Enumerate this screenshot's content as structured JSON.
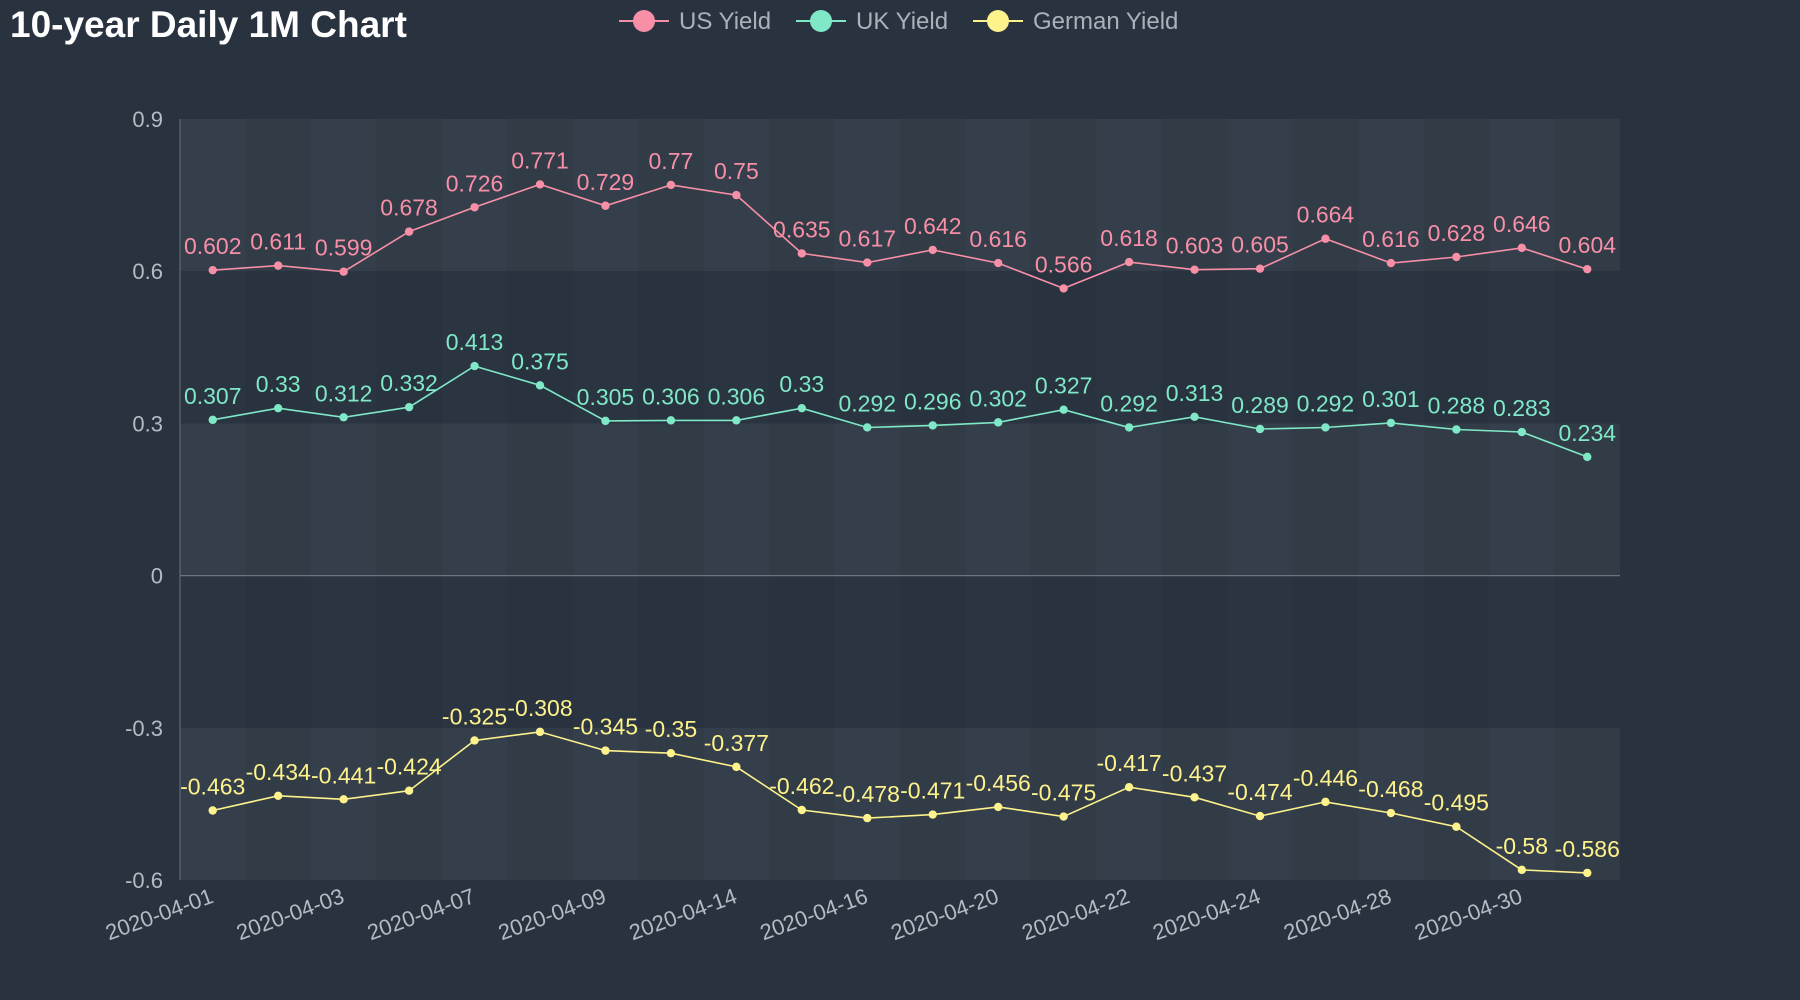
{
  "chart_data": {
    "type": "line",
    "title": "10-year Daily 1M Chart",
    "xlabel": "",
    "ylabel": "",
    "ylim": [
      -0.6,
      0.9
    ],
    "yticks": [
      0.9,
      0.6,
      0.3,
      0,
      -0.3,
      -0.6
    ],
    "x_tick_labels": [
      "2020-04-01",
      "2020-04-03",
      "2020-04-07",
      "2020-04-09",
      "2020-04-14",
      "2020-04-16",
      "2020-04-20",
      "2020-04-22",
      "2020-04-24",
      "2020-04-28",
      "2020-04-30"
    ],
    "grid": true,
    "legend_position": "top",
    "series": [
      {
        "name": "US Yield",
        "color": "#f78fa7",
        "values": [
          0.602,
          0.611,
          0.599,
          0.678,
          0.726,
          0.771,
          0.729,
          0.77,
          0.75,
          0.635,
          0.617,
          0.642,
          0.616,
          0.566,
          0.618,
          0.603,
          0.605,
          0.664,
          0.616,
          0.628,
          0.646,
          0.604
        ]
      },
      {
        "name": "UK Yield",
        "color": "#7fe8c6",
        "values": [
          0.307,
          0.33,
          0.312,
          0.332,
          0.413,
          0.375,
          0.305,
          0.306,
          0.306,
          0.33,
          0.292,
          0.296,
          0.302,
          0.327,
          0.292,
          0.313,
          0.289,
          0.292,
          0.301,
          0.288,
          0.283,
          0.234
        ]
      },
      {
        "name": "German Yield",
        "color": "#fdf28c",
        "values": [
          -0.463,
          -0.434,
          -0.441,
          -0.424,
          -0.325,
          -0.308,
          -0.345,
          -0.35,
          -0.377,
          -0.462,
          -0.478,
          -0.471,
          -0.456,
          -0.475,
          -0.417,
          -0.437,
          -0.474,
          -0.446,
          -0.468,
          -0.495,
          -0.58,
          -0.586
        ]
      }
    ]
  }
}
